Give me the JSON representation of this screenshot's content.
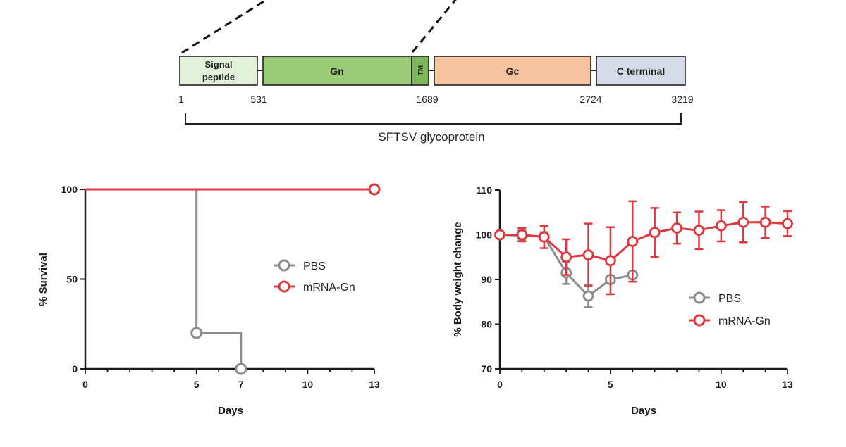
{
  "colors": {
    "pbs": "#8c8c8c",
    "mrna": "#e0383f",
    "axis": "#1a1a1a",
    "signal_fill": "#e3f1da",
    "gn_fill": "#9bcb78",
    "tm_fill": "#7fb85a",
    "gc_fill": "#f7c29f",
    "cterm_fill": "#d5dbe6"
  },
  "diagram": {
    "domains": [
      {
        "label_lines": [
          "Signal",
          "peptide"
        ]
      },
      {
        "label_lines": [
          "Gn"
        ]
      },
      {
        "label_lines": [
          "TM"
        ]
      },
      {
        "label_lines": [
          "Gc"
        ]
      },
      {
        "label_lines": [
          "C terminal"
        ]
      }
    ],
    "positions": [
      "1",
      "531",
      "1689",
      "2724",
      "3219"
    ],
    "caption": "SFTSV glycoprotein"
  },
  "chart_data": [
    {
      "type": "line",
      "title": "",
      "xlabel": "Days",
      "ylabel": "% Survival",
      "xlim": [
        0,
        13
      ],
      "ylim": [
        0,
        100
      ],
      "xticks": [
        0,
        5,
        7,
        10,
        13
      ],
      "yticks": [
        0,
        50,
        100
      ],
      "step": true,
      "legend_position": "center-right",
      "series": [
        {
          "name": "PBS",
          "color_key": "pbs",
          "x": [
            0,
            5,
            5,
            7,
            7
          ],
          "y": [
            100,
            100,
            20,
            20,
            0
          ],
          "markers": [
            [
              5,
              20
            ],
            [
              7,
              0
            ]
          ]
        },
        {
          "name": "mRNA-Gn",
          "color_key": "mrna",
          "x": [
            0,
            13
          ],
          "y": [
            100,
            100
          ],
          "markers": [
            [
              13,
              100
            ]
          ]
        }
      ]
    },
    {
      "type": "line",
      "title": "",
      "xlabel": "Days",
      "ylabel": "% Body weight change",
      "xlim": [
        0,
        13
      ],
      "ylim": [
        70,
        110
      ],
      "xticks": [
        0,
        5,
        10,
        13
      ],
      "yticks": [
        70,
        80,
        90,
        100,
        110
      ],
      "step": false,
      "legend_position": "lower-right",
      "series": [
        {
          "name": "PBS",
          "color_key": "pbs",
          "x": [
            0,
            1,
            2,
            3,
            4,
            5,
            6
          ],
          "y": [
            100,
            99.8,
            99.6,
            91.5,
            86.3,
            90,
            91
          ],
          "err": [
            0.3,
            1.2,
            1.0,
            2.5,
            2.5,
            0.8,
            0.5
          ]
        },
        {
          "name": "mRNA-Gn",
          "color_key": "mrna",
          "x": [
            0,
            1,
            2,
            3,
            4,
            5,
            6,
            7,
            8,
            9,
            10,
            11,
            12,
            13
          ],
          "y": [
            100,
            100,
            99.5,
            95,
            95.5,
            94.2,
            98.5,
            100.5,
            101.5,
            101,
            102,
            102.8,
            102.8,
            102.5
          ],
          "err": [
            0.3,
            1.5,
            2.5,
            4,
            7,
            7.5,
            9,
            5.5,
            3.5,
            4.2,
            3.5,
            4.5,
            3.5,
            2.8
          ]
        }
      ]
    }
  ]
}
